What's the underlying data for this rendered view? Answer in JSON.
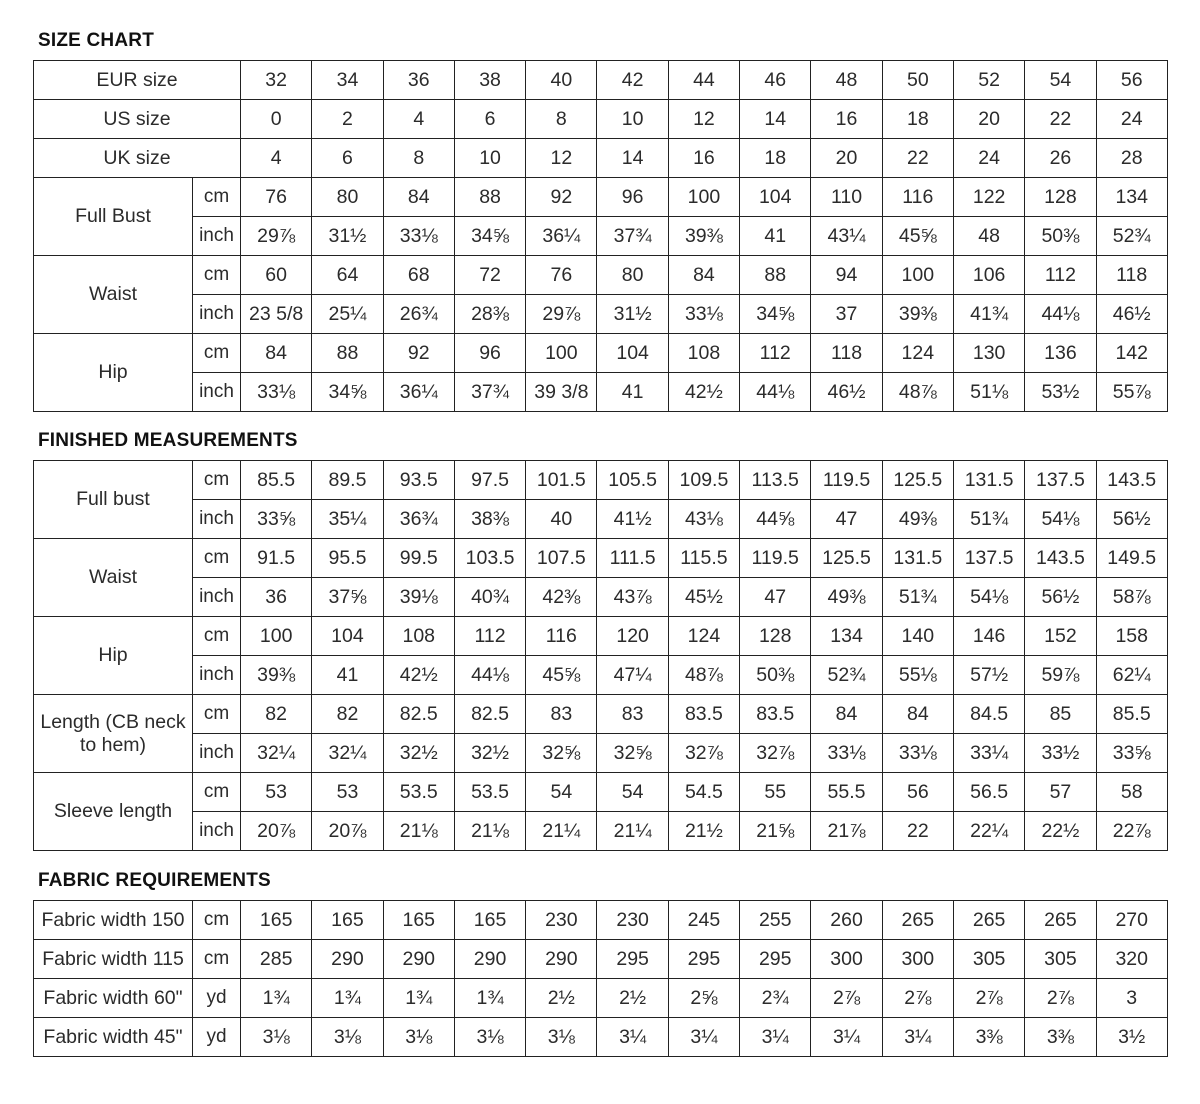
{
  "sections": [
    {
      "title": "SIZE CHART",
      "header_rows": [
        {
          "label": "EUR size",
          "values": [
            "32",
            "34",
            "36",
            "38",
            "40",
            "42",
            "44",
            "46",
            "48",
            "50",
            "52",
            "54",
            "56"
          ]
        },
        {
          "label": "US size",
          "values": [
            "0",
            "2",
            "4",
            "6",
            "8",
            "10",
            "12",
            "14",
            "16",
            "18",
            "20",
            "22",
            "24"
          ]
        },
        {
          "label": "UK size",
          "values": [
            "4",
            "6",
            "8",
            "10",
            "12",
            "14",
            "16",
            "18",
            "20",
            "22",
            "24",
            "26",
            "28"
          ]
        }
      ],
      "groups": [
        {
          "label": "Full Bust",
          "rows": [
            {
              "unit": "cm",
              "values": [
                "76",
                "80",
                "84",
                "88",
                "92",
                "96",
                "100",
                "104",
                "110",
                "116",
                "122",
                "128",
                "134"
              ]
            },
            {
              "unit": "inch",
              "values": [
                "29⅞",
                "31½",
                "33⅛",
                "34⅝",
                "36¼",
                "37¾",
                "39⅜",
                "41",
                "43¼",
                "45⅝",
                "48",
                "50⅜",
                "52¾"
              ]
            }
          ]
        },
        {
          "label": "Waist",
          "rows": [
            {
              "unit": "cm",
              "values": [
                "60",
                "64",
                "68",
                "72",
                "76",
                "80",
                "84",
                "88",
                "94",
                "100",
                "106",
                "112",
                "118"
              ]
            },
            {
              "unit": "inch",
              "values": [
                "23 5/8",
                "25¼",
                "26¾",
                "28⅜",
                "29⅞",
                "31½",
                "33⅛",
                "34⅝",
                "37",
                "39⅜",
                "41¾",
                "44⅛",
                "46½"
              ]
            }
          ]
        },
        {
          "label": "Hip",
          "rows": [
            {
              "unit": "cm",
              "values": [
                "84",
                "88",
                "92",
                "96",
                "100",
                "104",
                "108",
                "112",
                "118",
                "124",
                "130",
                "136",
                "142"
              ]
            },
            {
              "unit": "inch",
              "values": [
                "33⅛",
                "34⅝",
                "36¼",
                "37¾",
                "39 3/8",
                "41",
                "42½",
                "44⅛",
                "46½",
                "48⅞",
                "51⅛",
                "53½",
                "55⅞"
              ]
            }
          ]
        }
      ]
    },
    {
      "title": "FINISHED MEASUREMENTS",
      "header_rows": [],
      "groups": [
        {
          "label": "Full bust",
          "rows": [
            {
              "unit": "cm",
              "values": [
                "85.5",
                "89.5",
                "93.5",
                "97.5",
                "101.5",
                "105.5",
                "109.5",
                "113.5",
                "119.5",
                "125.5",
                "131.5",
                "137.5",
                "143.5"
              ]
            },
            {
              "unit": "inch",
              "values": [
                "33⅝",
                "35¼",
                "36¾",
                "38⅜",
                "40",
                "41½",
                "43⅛",
                "44⅝",
                "47",
                "49⅜",
                "51¾",
                "54⅛",
                "56½"
              ]
            }
          ]
        },
        {
          "label": "Waist",
          "rows": [
            {
              "unit": "cm",
              "values": [
                "91.5",
                "95.5",
                "99.5",
                "103.5",
                "107.5",
                "111.5",
                "115.5",
                "119.5",
                "125.5",
                "131.5",
                "137.5",
                "143.5",
                "149.5"
              ]
            },
            {
              "unit": "inch",
              "values": [
                "36",
                "37⅝",
                "39⅛",
                "40¾",
                "42⅜",
                "43⅞",
                "45½",
                "47",
                "49⅜",
                "51¾",
                "54⅛",
                "56½",
                "58⅞"
              ]
            }
          ]
        },
        {
          "label": "Hip",
          "rows": [
            {
              "unit": "cm",
              "values": [
                "100",
                "104",
                "108",
                "112",
                "116",
                "120",
                "124",
                "128",
                "134",
                "140",
                "146",
                "152",
                "158"
              ]
            },
            {
              "unit": "inch",
              "values": [
                "39⅜",
                "41",
                "42½",
                "44⅛",
                "45⅝",
                "47¼",
                "48⅞",
                "50⅜",
                "52¾",
                "55⅛",
                "57½",
                "59⅞",
                "62¼"
              ]
            }
          ]
        },
        {
          "label": "Length (CB neck to hem)",
          "rows": [
            {
              "unit": "cm",
              "values": [
                "82",
                "82",
                "82.5",
                "82.5",
                "83",
                "83",
                "83.5",
                "83.5",
                "84",
                "84",
                "84.5",
                "85",
                "85.5"
              ]
            },
            {
              "unit": "inch",
              "values": [
                "32¼",
                "32¼",
                "32½",
                "32½",
                "32⅝",
                "32⅝",
                "32⅞",
                "32⅞",
                "33⅛",
                "33⅛",
                "33¼",
                "33½",
                "33⅝"
              ]
            }
          ]
        },
        {
          "label": "Sleeve length",
          "rows": [
            {
              "unit": "cm",
              "values": [
                "53",
                "53",
                "53.5",
                "53.5",
                "54",
                "54",
                "54.5",
                "55",
                "55.5",
                "56",
                "56.5",
                "57",
                "58"
              ]
            },
            {
              "unit": "inch",
              "values": [
                "20⅞",
                "20⅞",
                "21⅛",
                "21⅛",
                "21¼",
                "21¼",
                "21½",
                "21⅝",
                "21⅞",
                "22",
                "22¼",
                "22½",
                "22⅞"
              ]
            }
          ]
        }
      ]
    },
    {
      "title": "FABRIC REQUIREMENTS",
      "header_rows": [],
      "groups": [
        {
          "label": "Fabric width 150",
          "rows": [
            {
              "unit": "cm",
              "values": [
                "165",
                "165",
                "165",
                "165",
                "230",
                "230",
                "245",
                "255",
                "260",
                "265",
                "265",
                "265",
                "270"
              ]
            }
          ]
        },
        {
          "label": "Fabric width 115",
          "rows": [
            {
              "unit": "cm",
              "values": [
                "285",
                "290",
                "290",
                "290",
                "290",
                "295",
                "295",
                "295",
                "300",
                "300",
                "305",
                "305",
                "320"
              ]
            }
          ]
        },
        {
          "label": "Fabric width 60\"",
          "rows": [
            {
              "unit": "yd",
              "values": [
                "1¾",
                "1¾",
                "1¾",
                "1¾",
                "2½",
                "2½",
                "2⅝",
                "2¾",
                "2⅞",
                "2⅞",
                "2⅞",
                "2⅞",
                "3"
              ]
            }
          ]
        },
        {
          "label": "Fabric width 45\"",
          "rows": [
            {
              "unit": "yd",
              "values": [
                "3⅛",
                "3⅛",
                "3⅛",
                "3⅛",
                "3⅛",
                "3¼",
                "3¼",
                "3¼",
                "3¼",
                "3¼",
                "3⅜",
                "3⅜",
                "3½"
              ]
            }
          ]
        }
      ]
    }
  ]
}
